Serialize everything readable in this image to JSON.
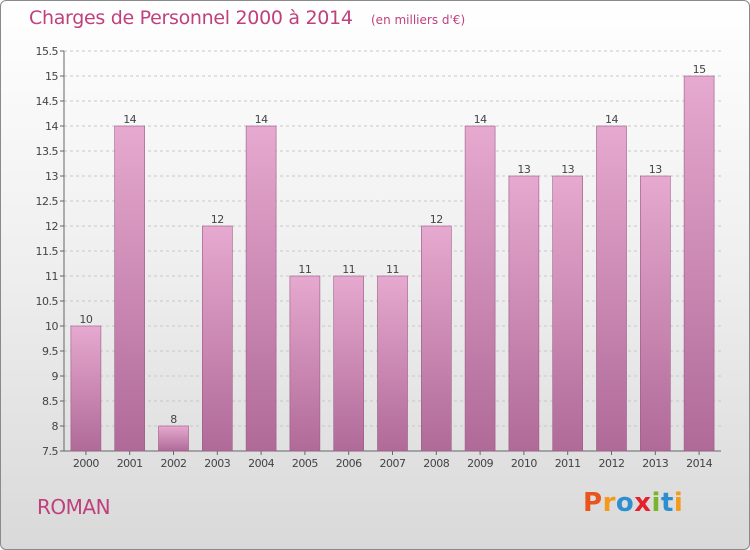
{
  "header": {
    "title": "Charges de Personnel 2000 à 2014",
    "unit": "(en milliers d'€)"
  },
  "footer": {
    "commune": "ROMAN",
    "logo_text": "Proxiti",
    "logo_colors": [
      "#e8541c",
      "#f39a1e",
      "#2e8fd0",
      "#e3232c",
      "#79b52b",
      "#2e8fd0",
      "#f39a1e"
    ]
  },
  "colors": {
    "bar_top": "#e6a9cf",
    "bar_bottom": "#b06a98",
    "text": "#c0407e"
  },
  "chart_data": {
    "type": "bar",
    "title": "Charges de Personnel 2000 à 2014",
    "xlabel": "",
    "ylabel": "",
    "categories": [
      "2000",
      "2001",
      "2002",
      "2003",
      "2004",
      "2005",
      "2006",
      "2007",
      "2008",
      "2009",
      "2010",
      "2011",
      "2012",
      "2013",
      "2014"
    ],
    "values": [
      10,
      14,
      8,
      12,
      14,
      11,
      11,
      11,
      12,
      14,
      13,
      13,
      14,
      13,
      15
    ],
    "ylim": [
      7.5,
      15.5
    ],
    "yticks": [
      7.5,
      8,
      8.5,
      9,
      9.5,
      10,
      10.5,
      11,
      11.5,
      12,
      12.5,
      13,
      13.5,
      14,
      14.5,
      15,
      15.5
    ],
    "ytick_labels": [
      "7.5",
      "8",
      "8.5",
      "9",
      "9.5",
      "10",
      "10.5",
      "11",
      "11.5",
      "12",
      "12.5",
      "13",
      "13.5",
      "14",
      "14.5",
      "15",
      "15.5"
    ],
    "grid": true,
    "legend": "none"
  }
}
